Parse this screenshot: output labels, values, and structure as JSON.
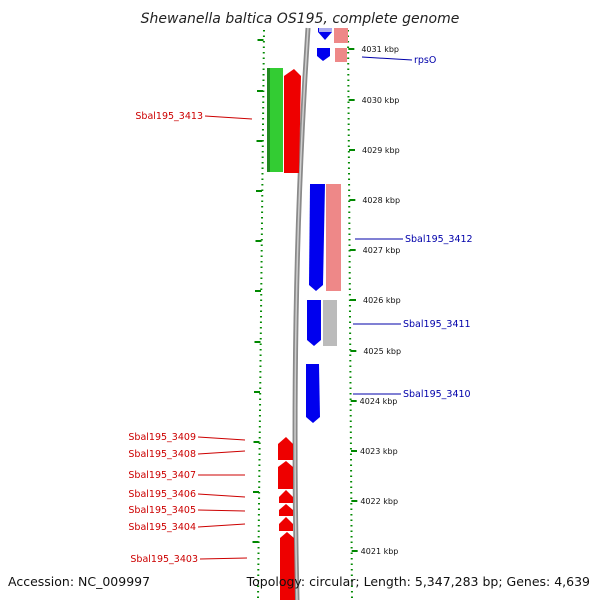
{
  "title": "Shewanella baltica OS195, complete genome",
  "accession": "Accession: NC_009997",
  "summary": "Topology: circular; Length: 5,347,283 bp; Genes: 4,639",
  "colors": {
    "forward_cds": "#0000ee",
    "reverse_cds": "#ee0000",
    "rna": "#33cc33",
    "light_blue": "#aaaaee",
    "light_red": "#ee8888",
    "grey": "#bbbbbb",
    "tick": "#008800"
  },
  "kbp_ticks": [
    "4031 kbp",
    "4030 kbp",
    "4029 kbp",
    "4028 kbp",
    "4027 kbp",
    "4026 kbp",
    "4025 kbp",
    "4024 kbp",
    "4023 kbp",
    "4022 kbp",
    "4021 kbp"
  ],
  "right_labels": [
    "rpsO",
    "Sbal195_3412",
    "Sbal195_3411",
    "Sbal195_3410"
  ],
  "left_labels": [
    "Sbal195_3413",
    "Sbal195_3409",
    "Sbal195_3408",
    "Sbal195_3407",
    "Sbal195_3406",
    "Sbal195_3405",
    "Sbal195_3404",
    "Sbal195_3403"
  ]
}
